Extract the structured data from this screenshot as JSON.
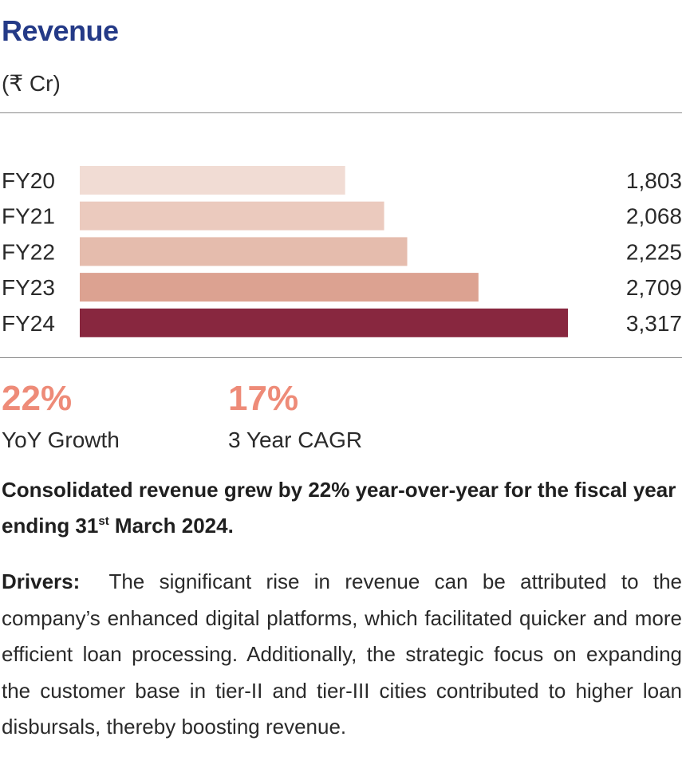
{
  "header": {
    "title": "Revenue",
    "unit": "(₹ Cr)"
  },
  "chart_data": {
    "type": "bar",
    "orientation": "horizontal",
    "categories": [
      "FY20",
      "FY21",
      "FY22",
      "FY23",
      "FY24"
    ],
    "values": [
      1803,
      2068,
      2225,
      2709,
      3317
    ],
    "value_labels": [
      "1,803",
      "2,068",
      "2,225",
      "2,709",
      "3,317"
    ],
    "colors": [
      "#f1dcd4",
      "#ebcabe",
      "#e5bcad",
      "#dca291",
      "#88273f"
    ],
    "xlim": [
      0,
      3317
    ],
    "grid": false,
    "legend": "none"
  },
  "kpis": [
    {
      "value": "22%",
      "label": "YoY Growth"
    },
    {
      "value": "17%",
      "label": "3 Year CAGR"
    }
  ],
  "summary": {
    "text_before": "Consolidated revenue grew by 22% year-over-year for the fiscal year ending 31",
    "superscript": "st",
    "text_after": " March 2024."
  },
  "drivers": {
    "label": "Drivers:",
    "text": "The significant rise in revenue can be attributed to the company’s enhanced digital platforms, which facilitated quicker and more efficient loan processing. Additionally, the strategic focus on expanding the customer base in tier-II and tier-III cities contributed to higher loan disbursals, thereby boosting revenue."
  }
}
